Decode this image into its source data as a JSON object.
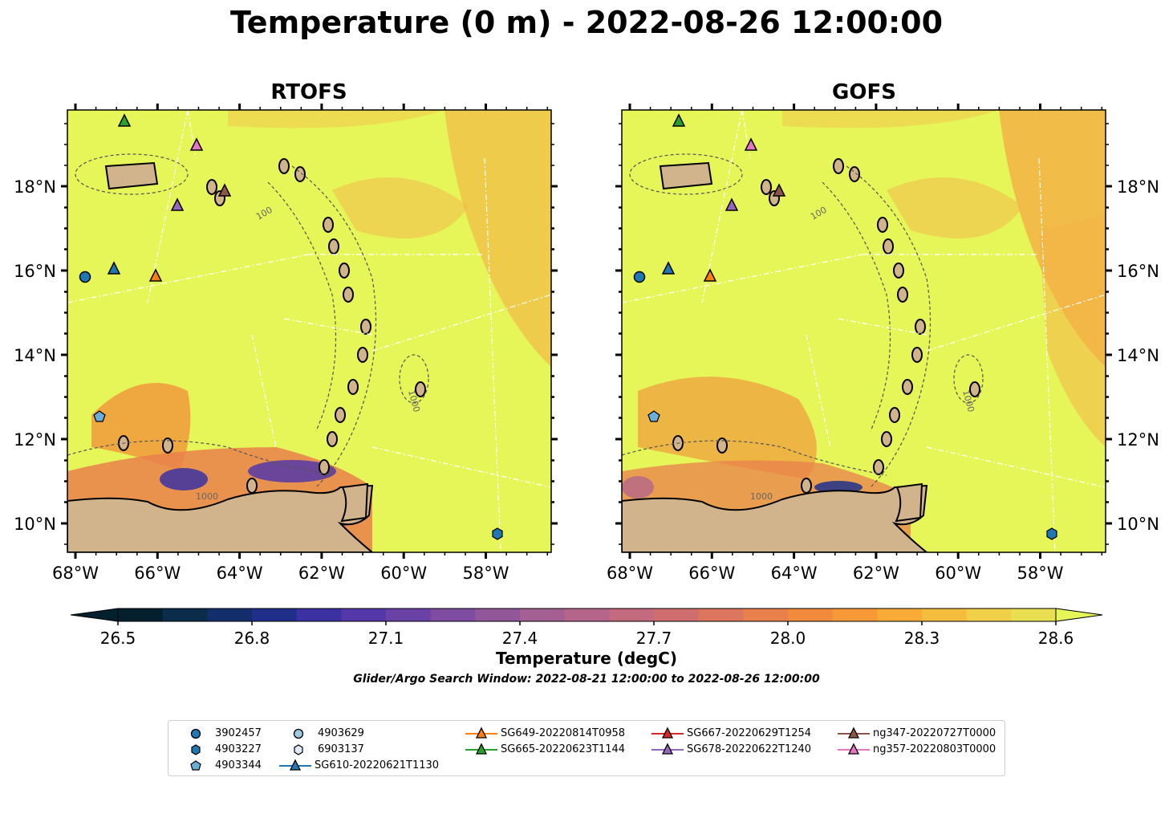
{
  "suptitle": "Temperature (0 m) - 2022-08-26 12:00:00",
  "panels": [
    {
      "title": "RTOFS"
    },
    {
      "title": "GOFS"
    }
  ],
  "lon_ticks": [
    "68°W",
    "66°W",
    "64°W",
    "62°W",
    "60°W",
    "58°W"
  ],
  "lat_ticks": [
    "18°N",
    "16°N",
    "14°N",
    "12°N",
    "10°N"
  ],
  "contour_labels": [
    "100",
    "1000"
  ],
  "colorbar": {
    "ticks": [
      "26.5",
      "26.8",
      "27.1",
      "27.4",
      "27.7",
      "28.0",
      "28.3",
      "28.6"
    ],
    "label": "Temperature (degC)",
    "colors": [
      "#04202e",
      "#0b2c4a",
      "#132e6a",
      "#20308a",
      "#3c31a3",
      "#5437a8",
      "#6a42a6",
      "#7e4ca1",
      "#925799",
      "#a45f93",
      "#b5658a",
      "#c36a7e",
      "#d06e6f",
      "#dc765e",
      "#e9804c",
      "#f28a3d",
      "#f79936",
      "#f8ab37",
      "#f5bd3d",
      "#f1d049",
      "#eadf52",
      "#e6f558"
    ],
    "range": [
      26.4,
      28.7
    ]
  },
  "search_window": "Glider/Argo Search Window: 2022-08-21 12:00:00 to 2022-08-26 12:00:00",
  "legend": [
    {
      "label": "3902457",
      "marker": "circle",
      "color": "#1f77b4"
    },
    {
      "label": "4903227",
      "marker": "hexagon",
      "color": "#1f77b4"
    },
    {
      "label": "4903344",
      "marker": "pentagon",
      "color": "#6baed6"
    },
    {
      "label": "4903629",
      "marker": "circle",
      "color": "#9ecae1"
    },
    {
      "label": "6903137",
      "marker": "hexagon",
      "color": "#deebf7"
    },
    {
      "label": "SG610-20220621T1130",
      "marker": "triangle-line",
      "color": "#1f77b4"
    },
    {
      "label": "SG649-20220814T0958",
      "marker": "triangle-line",
      "color": "#ff7f0e"
    },
    {
      "label": "SG665-20220623T1144",
      "marker": "triangle-line",
      "color": "#2ca02c"
    },
    {
      "label": "SG667-20220629T1254",
      "marker": "triangle-line",
      "color": "#d62728"
    },
    {
      "label": "SG678-20220622T1240",
      "marker": "triangle-line",
      "color": "#9467bd"
    },
    {
      "label": "ng347-20220727T0000",
      "marker": "triangle-line",
      "color": "#8c564b"
    },
    {
      "label": "ng357-20220803T0000",
      "marker": "triangle-line",
      "color": "#e377c2"
    }
  ],
  "colors": {
    "sea_base": "#e6f558",
    "land": "#d2b48c",
    "warm": "#f5a23d",
    "cold": "#3c31a3"
  }
}
